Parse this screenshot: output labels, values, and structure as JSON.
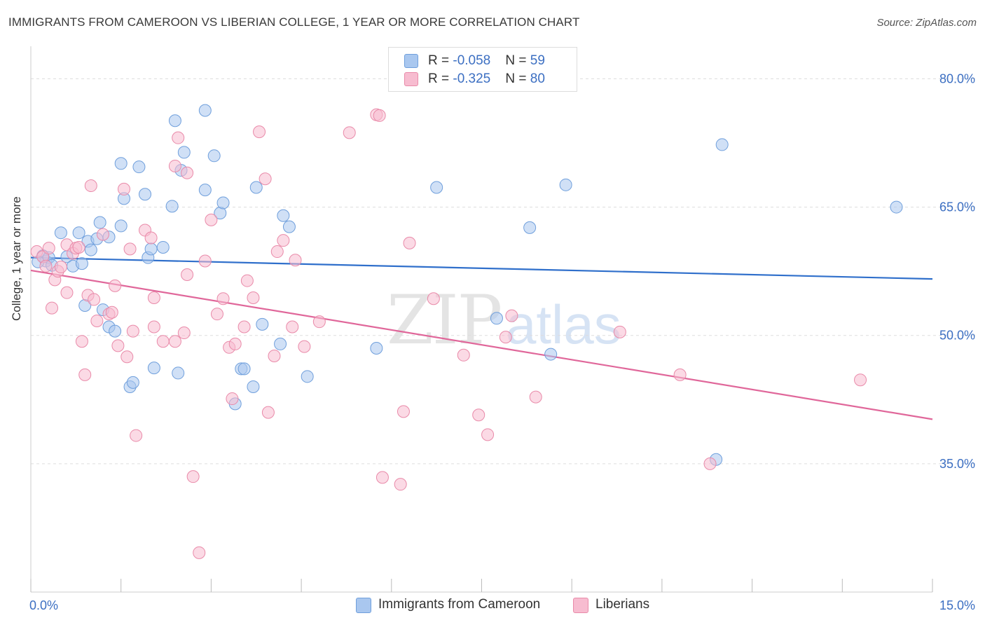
{
  "title": "IMMIGRANTS FROM CAMEROON VS LIBERIAN COLLEGE, 1 YEAR OR MORE CORRELATION CHART",
  "source": "Source: ZipAtlas.com",
  "watermark": {
    "zip": "ZIP",
    "atlas": "atlas"
  },
  "legend": [
    {
      "r_label": "R = ",
      "r_value": "-0.058",
      "n_label": "N = ",
      "n_value": "59",
      "color": "#a9c7ef",
      "edge": "#6f9fdc"
    },
    {
      "r_label": "R = ",
      "r_value": "-0.325",
      "n_label": "N = ",
      "n_value": "80",
      "color": "#f7bcd0",
      "edge": "#e98aa9"
    }
  ],
  "bottom_legend": [
    "Immigrants from Cameroon",
    "Liberians"
  ],
  "chart_data": {
    "type": "scatter",
    "title": "IMMIGRANTS FROM CAMEROON VS LIBERIAN COLLEGE, 1 YEAR OR MORE CORRELATION CHART",
    "xlabel": "",
    "ylabel": "College, 1 year or more",
    "xlim": [
      0,
      15
    ],
    "ylim": [
      20,
      82
    ],
    "x_tick_labels": [
      "0.0%",
      "15.0%"
    ],
    "y_ticks": [
      35,
      50,
      65,
      80
    ],
    "y_tick_labels": [
      "35.0%",
      "50.0%",
      "65.0%",
      "80.0%"
    ],
    "grid": "horizontal dashed",
    "legend_position": "top-center",
    "series": [
      {
        "name": "Immigrants from Cameroon",
        "color": "#a9c7ef",
        "edge_color": "#6f9fdc",
        "trend_color": "#2f6fcb",
        "R": -0.058,
        "N": 59,
        "trend": {
          "x": [
            0,
            15
          ],
          "y": [
            59.1,
            56.6
          ]
        },
        "points": [
          [
            0.2,
            59.3
          ],
          [
            0.25,
            58.7
          ],
          [
            0.3,
            59.1
          ],
          [
            0.35,
            58.2
          ],
          [
            0.5,
            62.0
          ],
          [
            0.6,
            59.2
          ],
          [
            0.7,
            58.1
          ],
          [
            0.8,
            62.0
          ],
          [
            0.85,
            58.4
          ],
          [
            0.95,
            61.0
          ],
          [
            1.0,
            60.0
          ],
          [
            0.9,
            53.5
          ],
          [
            1.1,
            61.3
          ],
          [
            1.15,
            63.2
          ],
          [
            1.2,
            53.0
          ],
          [
            1.3,
            61.5
          ],
          [
            1.3,
            51.0
          ],
          [
            1.4,
            50.5
          ],
          [
            1.5,
            62.8
          ],
          [
            1.5,
            70.1
          ],
          [
            1.55,
            66.0
          ],
          [
            1.65,
            44.0
          ],
          [
            1.7,
            44.5
          ],
          [
            1.8,
            69.7
          ],
          [
            1.9,
            66.5
          ],
          [
            1.95,
            59.1
          ],
          [
            2.0,
            60.1
          ],
          [
            2.05,
            46.2
          ],
          [
            2.2,
            60.3
          ],
          [
            2.35,
            65.1
          ],
          [
            2.4,
            75.1
          ],
          [
            2.45,
            45.6
          ],
          [
            2.5,
            69.3
          ],
          [
            2.55,
            71.4
          ],
          [
            2.9,
            67.0
          ],
          [
            2.9,
            76.3
          ],
          [
            3.05,
            71.0
          ],
          [
            3.15,
            64.3
          ],
          [
            3.2,
            65.5
          ],
          [
            3.4,
            42.0
          ],
          [
            3.5,
            46.1
          ],
          [
            3.55,
            46.1
          ],
          [
            3.7,
            44.0
          ],
          [
            3.75,
            67.3
          ],
          [
            3.85,
            51.3
          ],
          [
            4.15,
            49.0
          ],
          [
            4.2,
            64.0
          ],
          [
            4.3,
            62.7
          ],
          [
            4.6,
            45.2
          ],
          [
            5.75,
            48.5
          ],
          [
            6.75,
            67.3
          ],
          [
            7.75,
            52.0
          ],
          [
            8.3,
            62.6
          ],
          [
            8.65,
            47.8
          ],
          [
            8.9,
            67.6
          ],
          [
            11.5,
            72.3
          ],
          [
            11.4,
            35.5
          ],
          [
            14.4,
            65.0
          ],
          [
            0.12,
            58.6
          ]
        ]
      },
      {
        "name": "Liberians",
        "color": "#f7bcd0",
        "edge_color": "#e98aa9",
        "trend_color": "#e0679a",
        "R": -0.325,
        "N": 80,
        "trend": {
          "x": [
            0,
            15
          ],
          "y": [
            57.6,
            40.2
          ]
        },
        "points": [
          [
            0.1,
            59.8
          ],
          [
            0.2,
            59.2
          ],
          [
            0.25,
            58.1
          ],
          [
            0.3,
            60.2
          ],
          [
            0.35,
            53.2
          ],
          [
            0.4,
            56.5
          ],
          [
            0.45,
            57.5
          ],
          [
            0.5,
            58.0
          ],
          [
            0.6,
            55.0
          ],
          [
            0.6,
            60.6
          ],
          [
            0.7,
            59.6
          ],
          [
            0.75,
            60.2
          ],
          [
            0.8,
            60.3
          ],
          [
            0.85,
            49.3
          ],
          [
            0.9,
            45.4
          ],
          [
            0.95,
            54.7
          ],
          [
            1.0,
            67.5
          ],
          [
            1.05,
            54.2
          ],
          [
            1.1,
            51.7
          ],
          [
            1.2,
            61.8
          ],
          [
            1.3,
            52.5
          ],
          [
            1.35,
            52.7
          ],
          [
            1.4,
            55.8
          ],
          [
            1.45,
            48.8
          ],
          [
            1.55,
            67.1
          ],
          [
            1.6,
            47.5
          ],
          [
            1.65,
            60.1
          ],
          [
            1.7,
            50.5
          ],
          [
            1.75,
            38.3
          ],
          [
            1.9,
            62.3
          ],
          [
            2.0,
            61.4
          ],
          [
            2.05,
            54.4
          ],
          [
            2.05,
            51.0
          ],
          [
            2.2,
            49.3
          ],
          [
            2.4,
            69.8
          ],
          [
            2.4,
            49.3
          ],
          [
            2.45,
            73.1
          ],
          [
            2.55,
            50.3
          ],
          [
            2.6,
            69.0
          ],
          [
            2.6,
            57.1
          ],
          [
            2.7,
            33.5
          ],
          [
            2.8,
            24.6
          ],
          [
            2.9,
            58.7
          ],
          [
            3.0,
            63.5
          ],
          [
            3.1,
            52.5
          ],
          [
            3.2,
            54.3
          ],
          [
            3.3,
            48.6
          ],
          [
            3.35,
            42.6
          ],
          [
            3.4,
            49.0
          ],
          [
            3.55,
            51.0
          ],
          [
            3.6,
            56.4
          ],
          [
            3.7,
            54.4
          ],
          [
            3.8,
            73.8
          ],
          [
            3.9,
            68.3
          ],
          [
            3.95,
            41.0
          ],
          [
            4.05,
            47.6
          ],
          [
            4.1,
            59.8
          ],
          [
            4.2,
            61.1
          ],
          [
            4.35,
            51.0
          ],
          [
            4.4,
            58.8
          ],
          [
            4.55,
            48.7
          ],
          [
            4.8,
            51.6
          ],
          [
            5.3,
            73.7
          ],
          [
            5.75,
            75.8
          ],
          [
            5.8,
            75.7
          ],
          [
            5.85,
            33.4
          ],
          [
            6.15,
            32.6
          ],
          [
            6.2,
            41.1
          ],
          [
            6.3,
            60.8
          ],
          [
            6.7,
            54.3
          ],
          [
            7.2,
            47.7
          ],
          [
            7.45,
            40.7
          ],
          [
            7.6,
            38.4
          ],
          [
            7.9,
            49.8
          ],
          [
            8.0,
            52.3
          ],
          [
            8.4,
            42.8
          ],
          [
            9.8,
            50.4
          ],
          [
            10.8,
            45.4
          ],
          [
            11.3,
            35.0
          ],
          [
            13.8,
            44.8
          ]
        ]
      }
    ]
  }
}
